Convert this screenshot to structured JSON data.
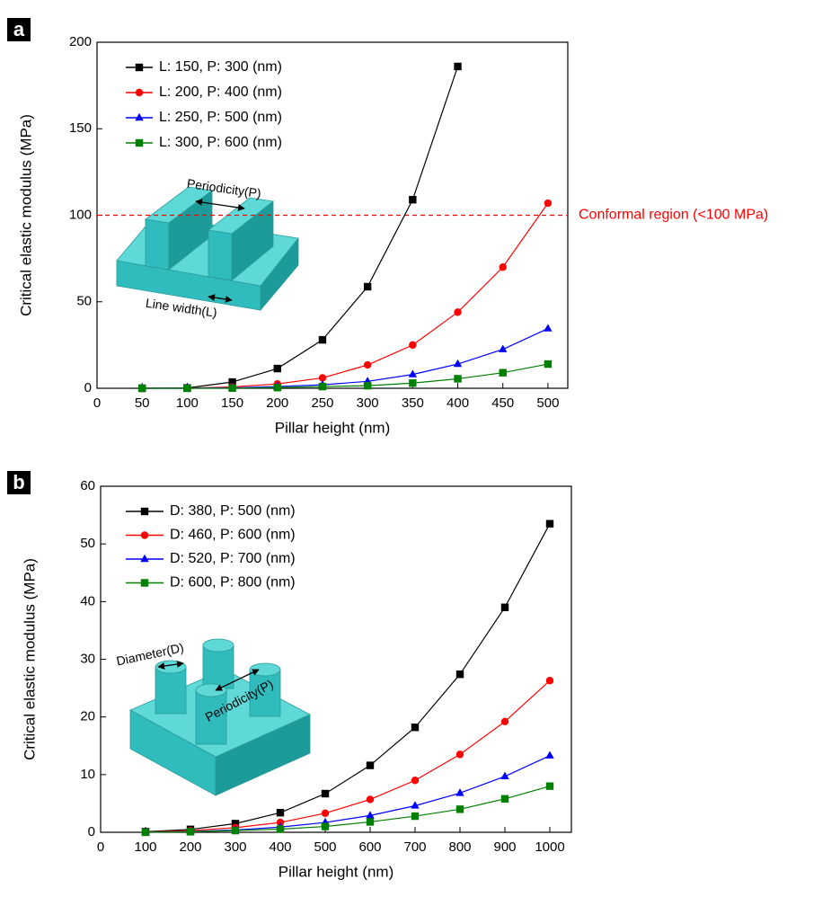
{
  "chart_data": [
    {
      "type": "line",
      "panel_label": "a",
      "xlabel": "Pillar height (nm)",
      "ylabel": "Critical elastic modulus (MPa)",
      "x": [
        50,
        100,
        150,
        200,
        250,
        300,
        350,
        400,
        450,
        500
      ],
      "series": [
        {
          "name": "L: 150, P: 300 (nm)",
          "color": "#000000",
          "marker": "square",
          "values": [
            0,
            0.2,
            3.6,
            11.4,
            28,
            58.7,
            109,
            186,
            null,
            null
          ]
        },
        {
          "name": "L: 200, P: 400 (nm)",
          "color": "#ff0000",
          "marker": "circle",
          "values": [
            0,
            0.1,
            0.8,
            2.5,
            6,
            13.5,
            25,
            44,
            70,
            107
          ]
        },
        {
          "name": "L: 250, P: 500 (nm)",
          "color": "#0000ff",
          "marker": "triangle",
          "values": [
            0,
            0,
            0.3,
            1,
            2,
            4,
            8,
            14,
            22.5,
            34.5
          ]
        },
        {
          "name": "L: 300, P: 600 (nm)",
          "color": "#008000",
          "marker": "square",
          "values": [
            0,
            0,
            0.1,
            0.4,
            1,
            1.5,
            3,
            5.5,
            9,
            14
          ]
        }
      ],
      "xlim": [
        0,
        522
      ],
      "ylim": [
        0,
        200
      ],
      "xticks": [
        0,
        50,
        100,
        150,
        200,
        250,
        300,
        350,
        400,
        450,
        500
      ],
      "yticks": [
        0,
        50,
        100,
        150,
        200
      ],
      "reference_line": {
        "value": 100,
        "label": "Conformal region (<100 MPa)",
        "color": "#ff0000"
      },
      "annotations": [
        "Periodicity(P)",
        "Line width(L)"
      ]
    },
    {
      "type": "line",
      "panel_label": "b",
      "xlabel": "Pillar height (nm)",
      "ylabel": "Critical elastic modulus (MPa)",
      "x": [
        100,
        200,
        300,
        400,
        500,
        600,
        700,
        800,
        900,
        1000
      ],
      "series": [
        {
          "name": "D: 380, P: 500 (nm)",
          "color": "#000000",
          "marker": "square",
          "values": [
            0.1,
            0.5,
            1.5,
            3.4,
            6.7,
            11.6,
            18.2,
            27.4,
            39,
            53.5
          ]
        },
        {
          "name": "D: 460, P: 600 (nm)",
          "color": "#ff0000",
          "marker": "circle",
          "values": [
            0.05,
            0.3,
            0.8,
            1.7,
            3.3,
            5.7,
            9,
            13.5,
            19.2,
            26.3
          ]
        },
        {
          "name": "D: 520, P: 700 (nm)",
          "color": "#0000ff",
          "marker": "triangle",
          "values": [
            0,
            0.15,
            0.4,
            0.9,
            1.7,
            2.9,
            4.6,
            6.8,
            9.7,
            13.3
          ]
        },
        {
          "name": "D: 600, P: 800 (nm)",
          "color": "#008000",
          "marker": "square",
          "values": [
            0,
            0.1,
            0.3,
            0.55,
            1,
            1.8,
            2.8,
            4,
            5.8,
            8
          ]
        }
      ],
      "xlim": [
        0,
        1048
      ],
      "ylim": [
        0,
        60
      ],
      "xticks": [
        0,
        100,
        200,
        300,
        400,
        500,
        600,
        700,
        800,
        900,
        1000
      ],
      "yticks": [
        0,
        10,
        20,
        30,
        40,
        50,
        60
      ],
      "annotations": [
        "Diameter(D)",
        "Periodicity(P)"
      ]
    }
  ]
}
